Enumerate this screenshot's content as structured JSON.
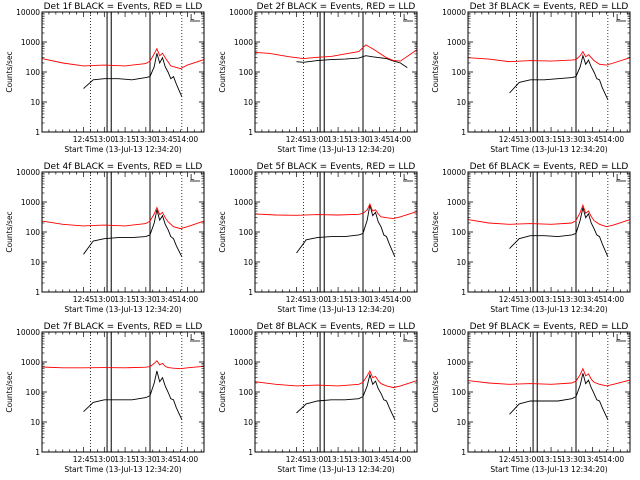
{
  "figure": {
    "colors": {
      "events": "#000000",
      "lld": "#ff0000",
      "axes": "#000000",
      "marker": "#000000"
    },
    "panels_per_row": 3,
    "common": {
      "type": "line",
      "y_scale": "log",
      "ylim": [
        1,
        10000
      ],
      "y_ticks": [
        1,
        10,
        100,
        1000,
        10000
      ],
      "y_tick_labels": [
        "1",
        "10",
        "100",
        "1000",
        "10000"
      ],
      "xlim_minutes": [
        735,
        852
      ],
      "x_ticks_minutes": [
        765,
        780,
        795,
        810,
        825,
        840
      ],
      "x_tick_labels": [
        "12:45",
        "13:00",
        "13:15",
        "13:30",
        "13:45",
        "14:00"
      ],
      "ylabel": "Counts/sec",
      "xlabel": "Start Time (13-Jul-13 12:34:20)",
      "dotted_lines_minutes": [
        770,
        836
      ],
      "solid_lines_minutes": [
        782,
        785,
        813
      ],
      "corner_marker": "L"
    }
  },
  "chart_data": [
    {
      "type": "line",
      "title": "Det 1f BLACK = Events, RED = LLD",
      "xlabel": "Start Time (13-Jul-13 12:34:20)",
      "ylabel": "Counts/sec",
      "series": [
        {
          "name": "Events",
          "color": "#000000",
          "x": [
            765,
            772,
            780,
            790,
            800,
            810,
            813,
            816,
            818,
            820,
            822,
            824,
            826,
            828,
            830,
            832,
            836
          ],
          "y": [
            28,
            55,
            60,
            60,
            55,
            65,
            70,
            150,
            420,
            200,
            300,
            150,
            100,
            60,
            70,
            40,
            15
          ]
        },
        {
          "name": "LLD",
          "color": "#ff0000",
          "x": [
            735,
            750,
            765,
            780,
            795,
            810,
            813,
            816,
            818,
            820,
            822,
            824,
            826,
            828,
            830,
            835,
            840,
            852
          ],
          "y": [
            280,
            200,
            160,
            170,
            160,
            190,
            230,
            400,
            600,
            350,
            420,
            300,
            220,
            160,
            150,
            130,
            170,
            260
          ]
        }
      ]
    },
    {
      "type": "line",
      "title": "Det 2f BLACK = Events, RED = LLD",
      "xlabel": "Start Time (13-Jul-13 12:34:20)",
      "ylabel": "Counts/sec",
      "series": [
        {
          "name": "Events",
          "color": "#000000",
          "x": [
            765,
            770,
            780,
            790,
            800,
            810,
            815,
            820,
            825,
            830,
            835,
            840,
            845
          ],
          "y": [
            220,
            210,
            240,
            260,
            270,
            290,
            350,
            320,
            300,
            280,
            230,
            200,
            140
          ]
        },
        {
          "name": "LLD",
          "color": "#ff0000",
          "x": [
            735,
            745,
            760,
            770,
            780,
            790,
            800,
            810,
            815,
            820,
            825,
            830,
            835,
            840,
            852
          ],
          "y": [
            450,
            420,
            320,
            280,
            310,
            330,
            400,
            480,
            800,
            600,
            420,
            300,
            240,
            230,
            550
          ]
        }
      ]
    },
    {
      "type": "line",
      "title": "Det 3f BLACK = Events, RED = LLD",
      "xlabel": "Start Time (13-Jul-13 12:34:20)",
      "ylabel": "Counts/sec",
      "series": [
        {
          "name": "Events",
          "color": "#000000",
          "x": [
            765,
            772,
            780,
            790,
            800,
            810,
            813,
            816,
            818,
            820,
            822,
            824,
            826,
            828,
            830,
            832,
            836
          ],
          "y": [
            20,
            45,
            55,
            55,
            60,
            65,
            70,
            150,
            350,
            180,
            250,
            150,
            100,
            60,
            55,
            30,
            12
          ]
        },
        {
          "name": "LLD",
          "color": "#ff0000",
          "x": [
            735,
            750,
            765,
            780,
            795,
            810,
            813,
            816,
            818,
            820,
            822,
            826,
            830,
            835,
            840,
            852
          ],
          "y": [
            300,
            270,
            220,
            240,
            230,
            250,
            260,
            350,
            480,
            320,
            380,
            240,
            180,
            170,
            200,
            300
          ]
        }
      ]
    },
    {
      "type": "line",
      "title": "Det 4f BLACK = Events, RED = LLD",
      "xlabel": "Start Time (13-Jul-13 12:34:20)",
      "ylabel": "Counts/sec",
      "series": [
        {
          "name": "Events",
          "color": "#000000",
          "x": [
            765,
            772,
            780,
            790,
            800,
            810,
            813,
            816,
            818,
            820,
            822,
            824,
            826,
            828,
            830,
            832,
            836
          ],
          "y": [
            18,
            50,
            60,
            65,
            65,
            70,
            80,
            200,
            550,
            250,
            350,
            180,
            120,
            70,
            60,
            35,
            15
          ]
        },
        {
          "name": "LLD",
          "color": "#ff0000",
          "x": [
            735,
            750,
            765,
            780,
            795,
            810,
            813,
            816,
            818,
            820,
            822,
            824,
            826,
            830,
            835,
            840,
            852
          ],
          "y": [
            230,
            180,
            160,
            170,
            160,
            190,
            230,
            400,
            650,
            380,
            450,
            300,
            220,
            150,
            130,
            150,
            230
          ]
        }
      ]
    },
    {
      "type": "line",
      "title": "Det 5f BLACK = Events, RED = LLD",
      "xlabel": "Start Time (13-Jul-13 12:34:20)",
      "ylabel": "Counts/sec",
      "series": [
        {
          "name": "Events",
          "color": "#000000",
          "x": [
            765,
            772,
            780,
            790,
            800,
            810,
            813,
            816,
            818,
            820,
            822,
            824,
            826,
            828,
            830,
            832,
            836
          ],
          "y": [
            20,
            55,
            65,
            70,
            70,
            80,
            90,
            250,
            800,
            350,
            450,
            220,
            150,
            80,
            70,
            40,
            15
          ]
        },
        {
          "name": "LLD",
          "color": "#ff0000",
          "x": [
            735,
            750,
            765,
            780,
            795,
            810,
            813,
            816,
            818,
            820,
            822,
            824,
            826,
            830,
            835,
            840,
            852
          ],
          "y": [
            400,
            370,
            360,
            380,
            370,
            390,
            420,
            550,
            850,
            500,
            550,
            400,
            320,
            300,
            280,
            320,
            480
          ]
        }
      ]
    },
    {
      "type": "line",
      "title": "Det 6f BLACK = Events, RED = LLD",
      "xlabel": "Start Time (13-Jul-13 12:34:20)",
      "ylabel": "Counts/sec",
      "series": [
        {
          "name": "Events",
          "color": "#000000",
          "x": [
            765,
            772,
            780,
            790,
            800,
            810,
            813,
            816,
            818,
            820,
            822,
            824,
            826,
            828,
            830,
            832,
            836
          ],
          "y": [
            28,
            60,
            75,
            75,
            70,
            80,
            90,
            250,
            650,
            300,
            400,
            200,
            130,
            80,
            70,
            40,
            15
          ]
        },
        {
          "name": "LLD",
          "color": "#ff0000",
          "x": [
            735,
            750,
            765,
            780,
            795,
            810,
            813,
            816,
            818,
            820,
            822,
            824,
            826,
            830,
            835,
            840,
            852
          ],
          "y": [
            260,
            200,
            180,
            190,
            180,
            200,
            240,
            450,
            780,
            420,
            500,
            330,
            240,
            180,
            150,
            170,
            260
          ]
        }
      ]
    },
    {
      "type": "line",
      "title": "Det 7f BLACK = Events, RED = LLD",
      "xlabel": "Start Time (13-Jul-13 12:34:20)",
      "ylabel": "Counts/sec",
      "series": [
        {
          "name": "Events",
          "color": "#000000",
          "x": [
            765,
            772,
            780,
            790,
            800,
            810,
            813,
            816,
            818,
            820,
            822,
            824,
            826,
            828,
            830,
            832,
            836
          ],
          "y": [
            22,
            45,
            55,
            55,
            55,
            65,
            75,
            200,
            500,
            220,
            300,
            160,
            100,
            60,
            55,
            30,
            12
          ]
        },
        {
          "name": "LLD",
          "color": "#ff0000",
          "x": [
            735,
            750,
            765,
            780,
            795,
            810,
            813,
            816,
            818,
            820,
            822,
            824,
            826,
            830,
            835,
            840,
            852
          ],
          "y": [
            680,
            640,
            640,
            650,
            640,
            670,
            700,
            900,
            1100,
            800,
            900,
            720,
            650,
            620,
            600,
            640,
            720
          ]
        }
      ]
    },
    {
      "type": "line",
      "title": "Det 8f BLACK = Events, RED = LLD",
      "xlabel": "Start Time (13-Jul-13 12:34:20)",
      "ylabel": "Counts/sec",
      "series": [
        {
          "name": "Events",
          "color": "#000000",
          "x": [
            765,
            772,
            780,
            790,
            800,
            810,
            813,
            816,
            818,
            820,
            822,
            824,
            826,
            828,
            830,
            832,
            836
          ],
          "y": [
            20,
            40,
            50,
            55,
            55,
            60,
            70,
            160,
            380,
            180,
            230,
            130,
            90,
            55,
            50,
            30,
            12
          ]
        },
        {
          "name": "LLD",
          "color": "#ff0000",
          "x": [
            735,
            750,
            765,
            780,
            795,
            810,
            813,
            816,
            818,
            820,
            822,
            824,
            826,
            830,
            835,
            840,
            852
          ],
          "y": [
            220,
            180,
            160,
            170,
            160,
            180,
            210,
            350,
            500,
            300,
            330,
            240,
            190,
            160,
            140,
            160,
            240
          ]
        }
      ]
    },
    {
      "type": "line",
      "title": "Det 9f BLACK = Events, RED = LLD",
      "xlabel": "Start Time (13-Jul-13 12:34:20)",
      "ylabel": "Counts/sec",
      "series": [
        {
          "name": "Events",
          "color": "#000000",
          "x": [
            765,
            772,
            780,
            790,
            800,
            810,
            813,
            816,
            818,
            820,
            822,
            824,
            826,
            828,
            830,
            832,
            836
          ],
          "y": [
            18,
            40,
            50,
            50,
            50,
            60,
            70,
            170,
            420,
            190,
            250,
            140,
            90,
            55,
            50,
            30,
            12
          ]
        },
        {
          "name": "LLD",
          "color": "#ff0000",
          "x": [
            735,
            750,
            765,
            780,
            795,
            810,
            813,
            816,
            818,
            820,
            822,
            824,
            826,
            830,
            835,
            840,
            852
          ],
          "y": [
            240,
            200,
            180,
            190,
            180,
            200,
            230,
            380,
            600,
            350,
            400,
            270,
            210,
            180,
            160,
            180,
            250
          ]
        }
      ]
    }
  ]
}
